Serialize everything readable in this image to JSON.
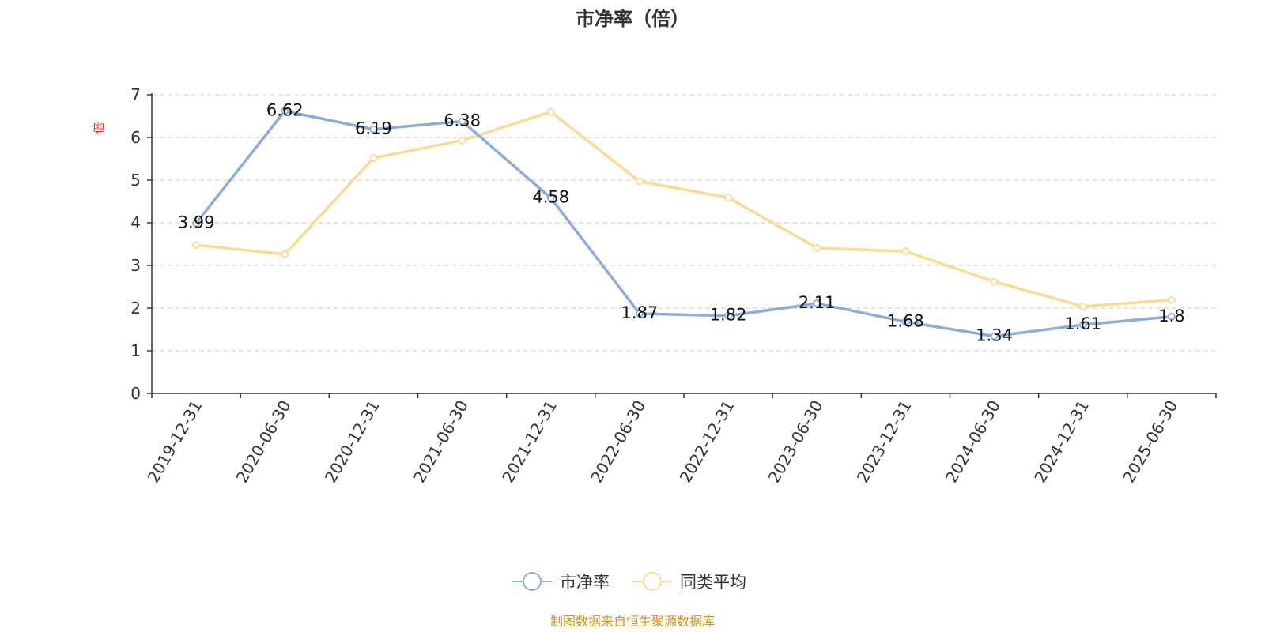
{
  "chart_data": {
    "type": "line",
    "title": "市净率（倍）",
    "ylabel": "倍",
    "ylim": [
      0,
      7
    ],
    "yticks": [
      0,
      1,
      2,
      3,
      4,
      5,
      6,
      7
    ],
    "grid": true,
    "legend_position": "bottom",
    "categories": [
      "2019-12-31",
      "2020-06-30",
      "2020-12-31",
      "2021-06-30",
      "2021-12-31",
      "2022-06-30",
      "2022-12-31",
      "2023-06-30",
      "2023-12-31",
      "2024-06-30",
      "2024-12-31",
      "2025-06-30"
    ],
    "series": [
      {
        "name": "市净率",
        "color": "#8eacd8",
        "values": [
          3.99,
          6.62,
          6.19,
          6.38,
          4.58,
          1.87,
          1.82,
          2.11,
          1.68,
          1.34,
          1.61,
          1.8
        ],
        "labels": [
          "3.99",
          "6.62",
          "6.19",
          "6.38",
          "4.58",
          "1.87",
          "1.82",
          "2.11",
          "1.68",
          "1.34",
          "1.61",
          "1.8"
        ]
      },
      {
        "name": "同类平均",
        "color": "#fcd994",
        "values": [
          3.48,
          3.26,
          5.52,
          5.93,
          6.6,
          4.97,
          4.59,
          3.41,
          3.33,
          2.62,
          2.04,
          2.19
        ]
      }
    ]
  },
  "colors": {
    "unit_label": "#e8342a",
    "source_text": "#c8961e",
    "grid": "#cccccc",
    "axis": "#333333"
  },
  "footer": {
    "source": "制图数据来自恒生聚源数据库"
  }
}
